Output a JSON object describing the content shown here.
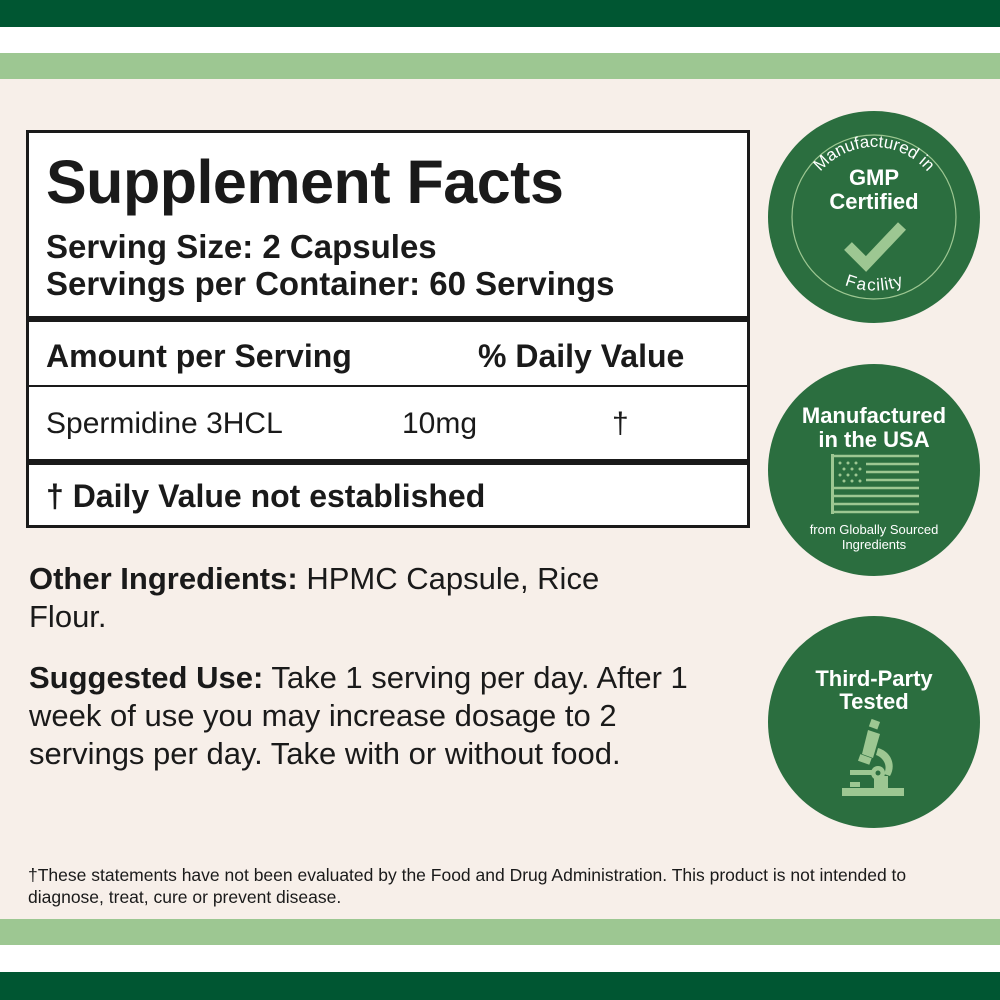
{
  "colors": {
    "dark_green": "#005632",
    "light_green": "#9dc792",
    "badge_green": "#2b6e3f",
    "background": "#f7efe9"
  },
  "facts": {
    "title": "Supplement Facts",
    "serving_size": "Serving Size: 2 Capsules",
    "servings_per_container": "Servings per Container: 60 Servings",
    "header_amount": "Amount per Serving",
    "header_dv": "% Daily Value",
    "rows": [
      {
        "name": "Spermidine 3HCL",
        "amount": "10mg",
        "dv": "†"
      }
    ],
    "dv_note": "† Daily Value not established"
  },
  "other_ingredients": {
    "label": "Other Ingredients:",
    "text": " HPMC Capsule, Rice Flour."
  },
  "suggested_use": {
    "label": "Suggested Use:",
    "text": " Take 1 serving per day. After 1 week of use you may increase dosage to 2 servings per day. Take with or without food."
  },
  "disclaimer": "†These statements have not been evaluated by the Food and Drug Administration. This product is not intended to diagnose, treat, cure or prevent disease.",
  "badges": [
    {
      "icon": "checkmark-icon",
      "arc_top": "Manufactured in",
      "title_line1": "GMP",
      "title_line2": "Certified",
      "arc_bottom": "Facility"
    },
    {
      "icon": "us-flag-icon",
      "title_line1": "Manufactured",
      "title_line2": "in the USA",
      "subtitle_line1": "from Globally Sourced",
      "subtitle_line2": "Ingredients"
    },
    {
      "icon": "microscope-icon",
      "title_line1": "Third-Party",
      "title_line2": "Tested"
    }
  ]
}
